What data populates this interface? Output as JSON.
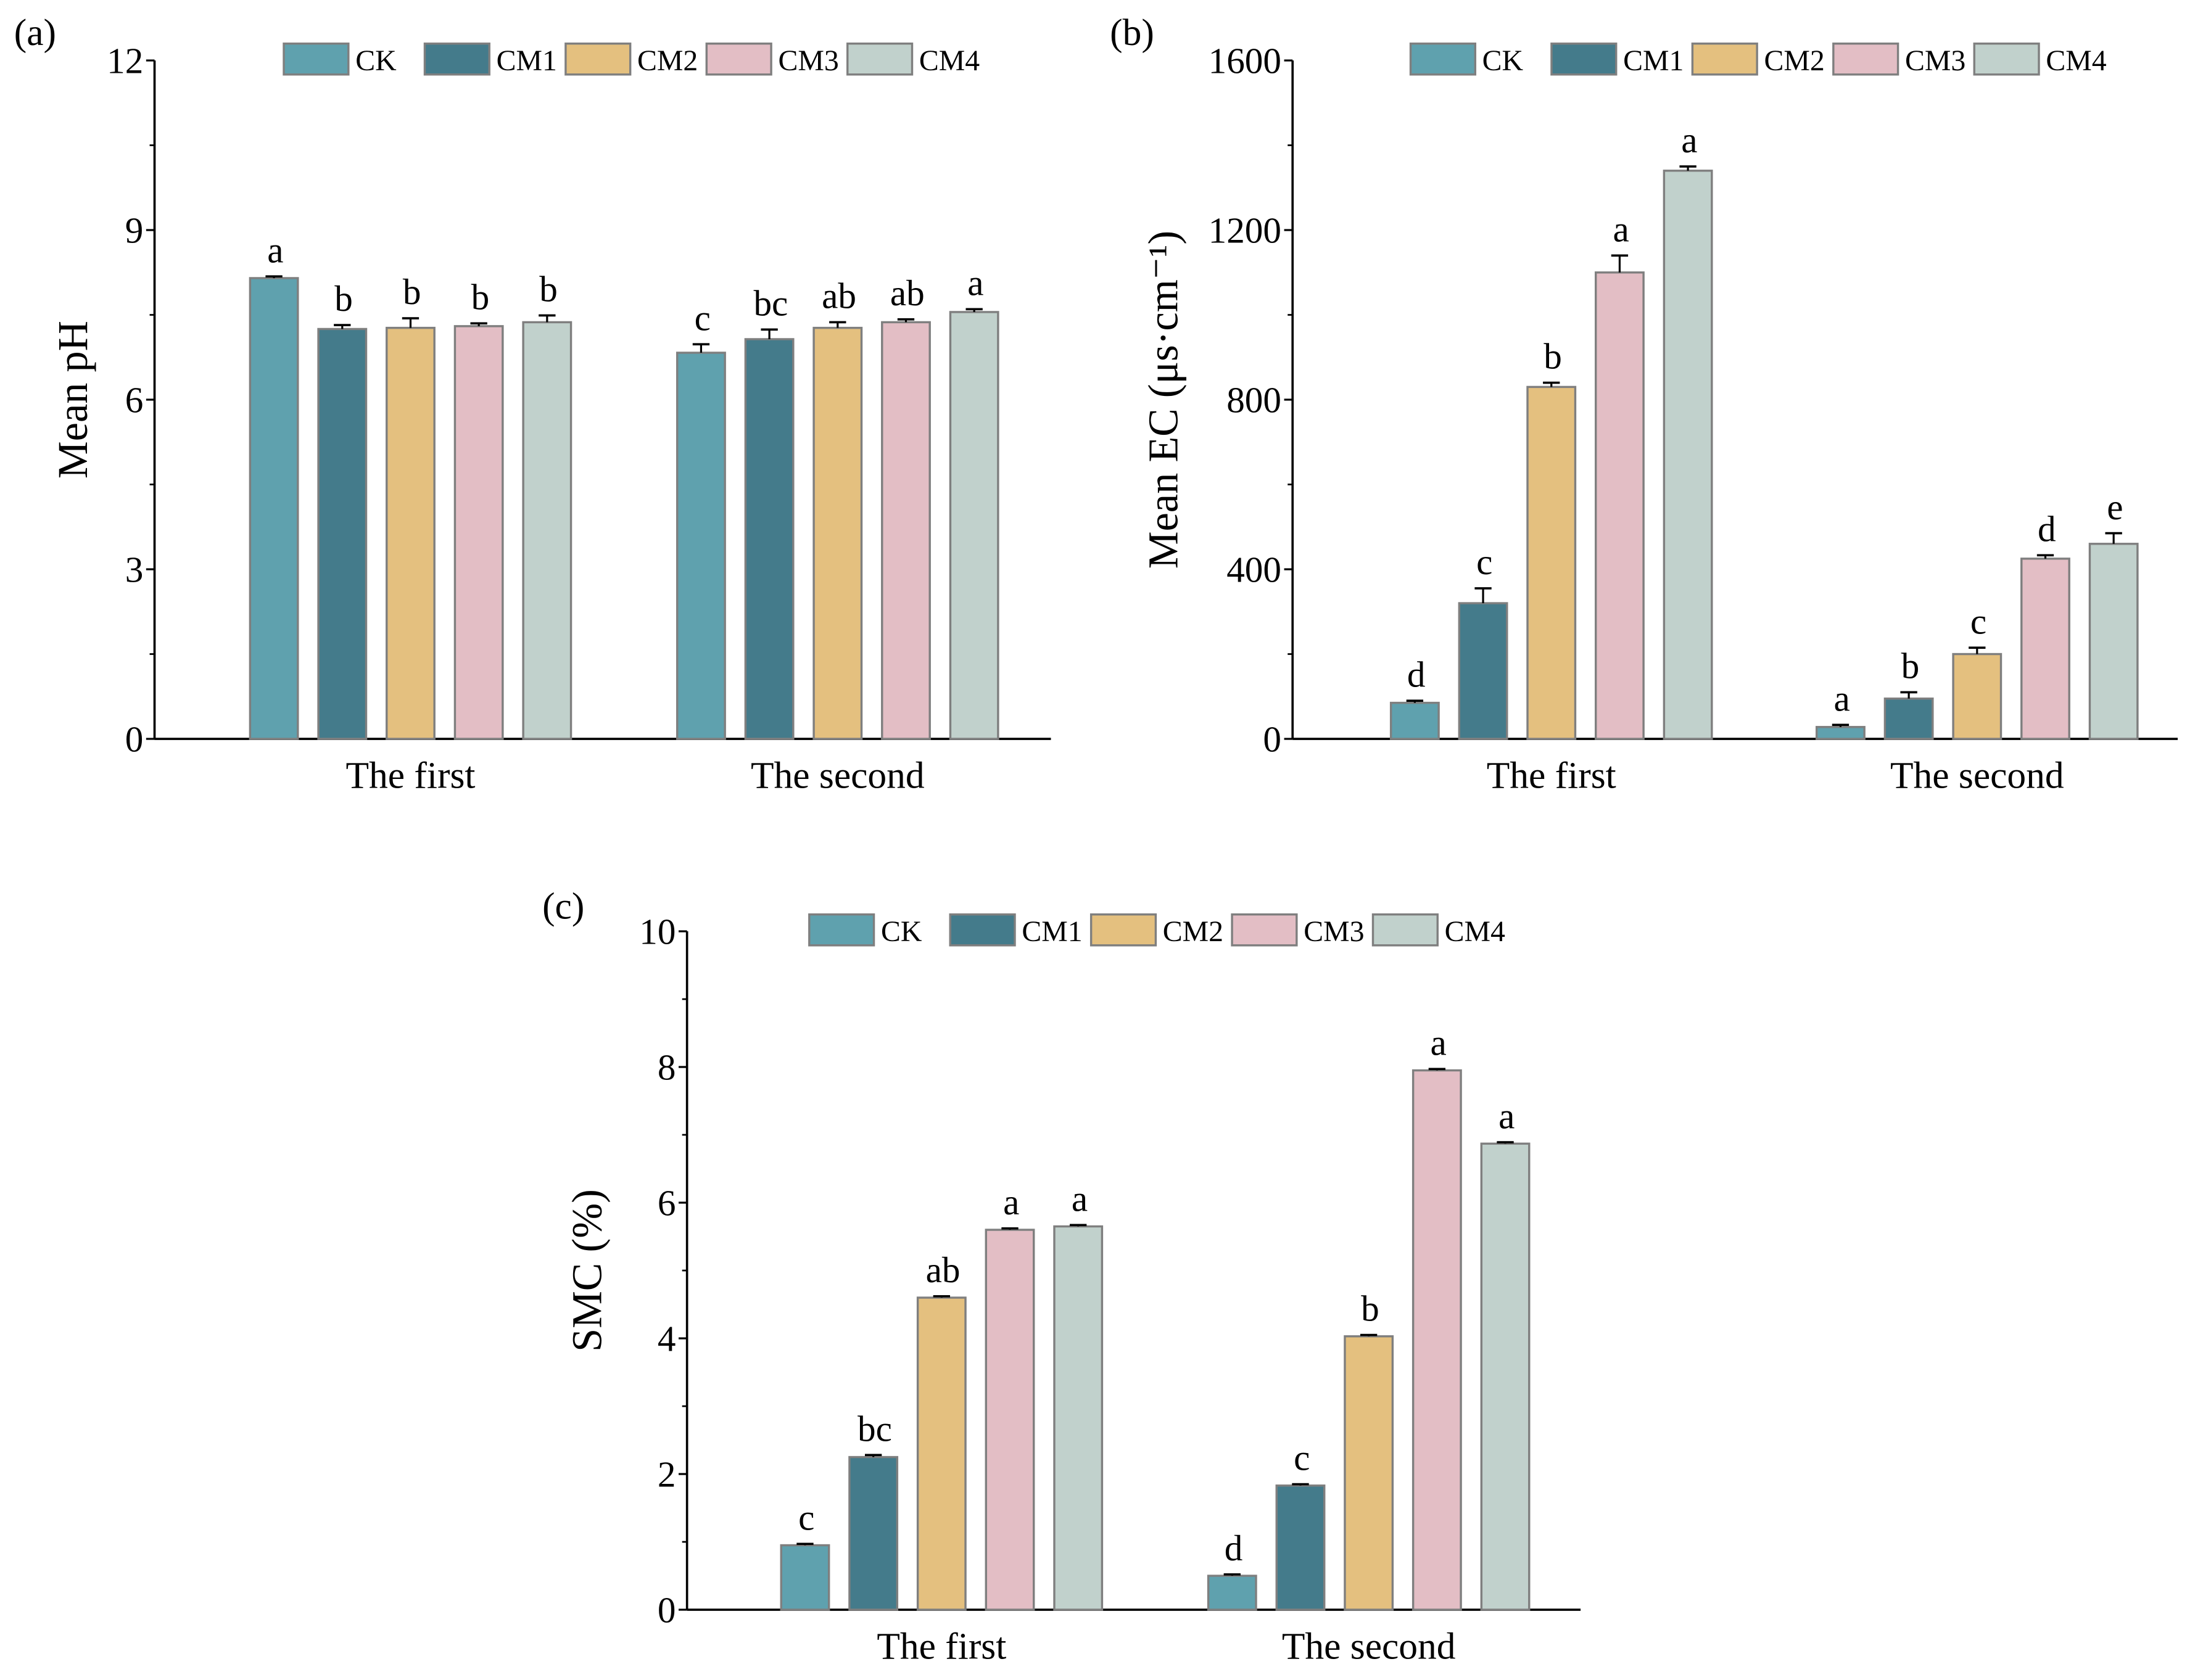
{
  "chart_data": [
    {
      "panel_label": "(a)",
      "type": "bar",
      "title": "",
      "xlabel": "",
      "ylabel": "Mean pH",
      "ylim": [
        0,
        12
      ],
      "yticks": [
        0,
        3,
        6,
        9,
        12
      ],
      "categories": [
        "The first",
        "The second"
      ],
      "legend_position": "top",
      "series": [
        {
          "name": "CK",
          "color": "#5fa1ae",
          "values": [
            8.15,
            6.83
          ],
          "errors": [
            0.03,
            0.15
          ],
          "letters": [
            "a",
            "c"
          ]
        },
        {
          "name": "CM1",
          "color": "#447b8b",
          "values": [
            7.25,
            7.07
          ],
          "errors": [
            0.07,
            0.17
          ],
          "letters": [
            "b",
            "bc"
          ]
        },
        {
          "name": "CM2",
          "color": "#e4c07f",
          "values": [
            7.27,
            7.27
          ],
          "errors": [
            0.17,
            0.1
          ],
          "letters": [
            "b",
            "ab"
          ]
        },
        {
          "name": "CM3",
          "color": "#e3bec5",
          "values": [
            7.3,
            7.37
          ],
          "errors": [
            0.05,
            0.05
          ],
          "letters": [
            "b",
            "ab"
          ]
        },
        {
          "name": "CM4",
          "color": "#c1d1cc",
          "values": [
            7.37,
            7.55
          ],
          "errors": [
            0.12,
            0.05
          ],
          "letters": [
            "b",
            "a"
          ]
        }
      ]
    },
    {
      "panel_label": "(b)",
      "type": "bar",
      "title": "",
      "xlabel": "",
      "ylabel": "Mean EC (μs·cm⁻¹)",
      "ylim": [
        0,
        1600
      ],
      "yticks": [
        0,
        400,
        800,
        1200,
        1600
      ],
      "categories": [
        "The first",
        "The second"
      ],
      "legend_position": "top",
      "series": [
        {
          "name": "CK",
          "color": "#5fa1ae",
          "values": [
            85,
            28
          ],
          "errors": [
            5,
            5
          ],
          "letters": [
            "d",
            "a"
          ]
        },
        {
          "name": "CM1",
          "color": "#447b8b",
          "values": [
            320,
            95
          ],
          "errors": [
            35,
            15
          ],
          "letters": [
            "c",
            "b"
          ]
        },
        {
          "name": "CM2",
          "color": "#e4c07f",
          "values": [
            830,
            200
          ],
          "errors": [
            10,
            15
          ],
          "letters": [
            "b",
            "c"
          ]
        },
        {
          "name": "CM3",
          "color": "#e3bec5",
          "values": [
            1100,
            425
          ],
          "errors": [
            40,
            8
          ],
          "letters": [
            "a",
            "d"
          ]
        },
        {
          "name": "CM4",
          "color": "#c1d1cc",
          "values": [
            1340,
            460
          ],
          "errors": [
            10,
            25
          ],
          "letters": [
            "a",
            "e"
          ]
        }
      ]
    },
    {
      "panel_label": "(c)",
      "type": "bar",
      "title": "",
      "xlabel": "",
      "ylabel": "SMC (%)",
      "ylim": [
        0,
        10
      ],
      "yticks": [
        0,
        2,
        4,
        6,
        8,
        10
      ],
      "categories": [
        "The first",
        "The second"
      ],
      "legend_position": "top",
      "series": [
        {
          "name": "CK",
          "color": "#5fa1ae",
          "values": [
            0.95,
            0.5
          ],
          "errors": [
            0.02,
            0.02
          ],
          "letters": [
            "c",
            "d"
          ]
        },
        {
          "name": "CM1",
          "color": "#447b8b",
          "values": [
            2.25,
            1.83
          ],
          "errors": [
            0.03,
            0.02
          ],
          "letters": [
            "bc",
            "c"
          ]
        },
        {
          "name": "CM2",
          "color": "#e4c07f",
          "values": [
            4.6,
            4.03
          ],
          "errors": [
            0.02,
            0.02
          ],
          "letters": [
            "ab",
            "b"
          ]
        },
        {
          "name": "CM3",
          "color": "#e3bec5",
          "values": [
            5.6,
            7.95
          ],
          "errors": [
            0.02,
            0.02
          ],
          "letters": [
            "a",
            "a"
          ]
        },
        {
          "name": "CM4",
          "color": "#c1d1cc",
          "values": [
            5.65,
            6.87
          ],
          "errors": [
            0.02,
            0.02
          ],
          "letters": [
            "a",
            "a"
          ]
        }
      ]
    }
  ]
}
